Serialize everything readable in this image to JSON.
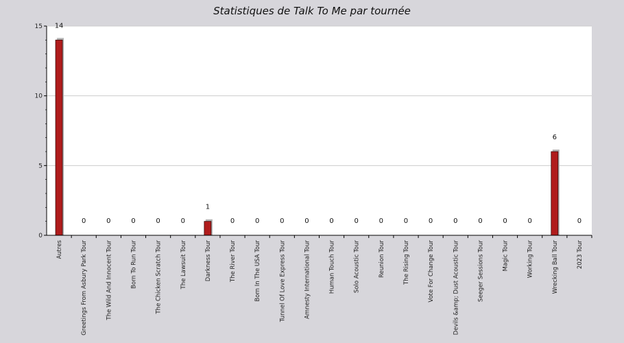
{
  "chart_data": {
    "type": "bar",
    "title": "Statistiques de Talk To Me par tournée",
    "xlabel": "",
    "ylabel": "",
    "ylim": [
      0,
      15
    ],
    "yticks": [
      0,
      5,
      10,
      15
    ],
    "grid": true,
    "categories": [
      "Autres",
      "Greetings From Asbury Park Tour",
      "The Wild And Innocent Tour",
      "Born To Run Tour",
      "The Chicken Scratch Tour",
      "The Lawsuit Tour",
      "Darkness Tour",
      "The River Tour",
      "Born In The USA Tour",
      "Tunnel Of Love Express Tour",
      "Amnesty International Tour",
      "Human Touch Tour",
      "Solo Acoustic Tour",
      "Reunion Tour",
      "The Rising Tour",
      "Vote For Change Tour",
      "Devils &amp; Dust Acoustic Tour",
      "Seeger Sessions Tour",
      "Magic Tour",
      "Working Tour",
      "Wrecking Ball Tour",
      "2023 Tour"
    ],
    "values": [
      14,
      0,
      0,
      0,
      0,
      0,
      1,
      0,
      0,
      0,
      0,
      0,
      0,
      0,
      0,
      0,
      0,
      0,
      0,
      0,
      6,
      0
    ],
    "colors": {
      "bar": "#b01c1c",
      "shadow": "#b4b4b4",
      "plot_bg": "#ffffff",
      "page_bg": "#d7d6db",
      "grid": "#cccccc"
    }
  }
}
